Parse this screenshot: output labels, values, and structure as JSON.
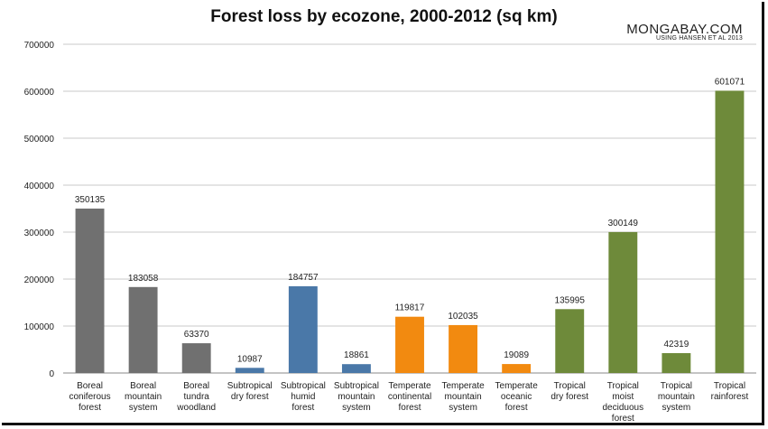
{
  "chart_data": {
    "type": "bar",
    "title": "Forest loss by ecozone, 2000-2012 (sq km)",
    "source": {
      "line1": "MONGABAY.COM",
      "line2": "USING HANSEN ET AL 2013"
    },
    "xlabel": "",
    "ylabel": "",
    "ylim": [
      0,
      700000
    ],
    "yticks": [
      "0",
      "100000",
      "200000",
      "300000",
      "400000",
      "500000",
      "600000",
      "700000"
    ],
    "grid": true,
    "categories": [
      [
        "Boreal",
        "coniferous",
        "forest"
      ],
      [
        "Boreal",
        "mountain",
        "system"
      ],
      [
        "Boreal",
        "tundra",
        "woodland"
      ],
      [
        "Subtropical",
        "dry forest"
      ],
      [
        "Subtropical",
        "humid",
        "forest"
      ],
      [
        "Subtropical",
        "mountain",
        "system"
      ],
      [
        "Temperate",
        "continental",
        "forest"
      ],
      [
        "Temperate",
        "mountain",
        "system"
      ],
      [
        "Temperate",
        "oceanic",
        "forest"
      ],
      [
        "Tropical",
        "dry forest"
      ],
      [
        "Tropical",
        "moist",
        "deciduous",
        "forest"
      ],
      [
        "Tropical",
        "mountain",
        "system"
      ],
      [
        "Tropical",
        "rainforest"
      ]
    ],
    "values": [
      350135,
      183058,
      63370,
      10987,
      184757,
      18861,
      119817,
      102035,
      19089,
      135995,
      300149,
      42319,
      601071
    ],
    "value_labels": [
      "350135",
      "183058",
      "63370",
      "10987",
      "184757",
      "18861",
      "119817",
      "102035",
      "19089",
      "135995",
      "300149",
      "42319",
      "601071"
    ],
    "colors": [
      "#707070",
      "#707070",
      "#707070",
      "#4a78a8",
      "#4a78a8",
      "#4a78a8",
      "#f28a10",
      "#f28a10",
      "#f28a10",
      "#6e8a3a",
      "#6e8a3a",
      "#6e8a3a",
      "#6e8a3a"
    ]
  }
}
